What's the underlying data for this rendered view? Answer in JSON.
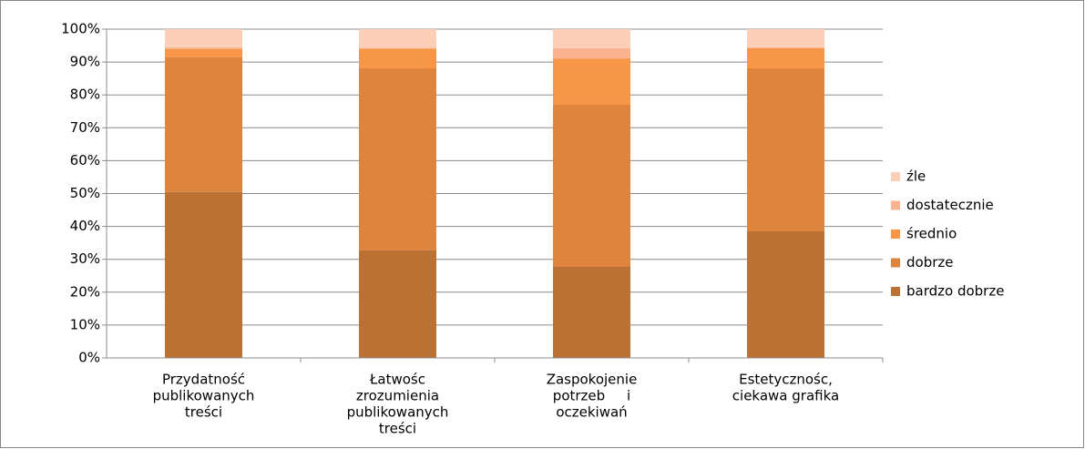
{
  "chart_data": {
    "type": "stacked_bar",
    "categories": [
      [
        "Przydatność",
        "publikowanych",
        "treści"
      ],
      [
        "Łatwośc",
        "zrozumienia",
        "publikowanych",
        "treści"
      ],
      [
        "Zaspokojenie",
        "potrzeb     i",
        "oczekiwań"
      ],
      [
        "Estetycznośc,",
        "ciekawa grafika"
      ]
    ],
    "series": [
      {
        "name": "bardzo dobrze",
        "color": "#bb7133",
        "values": [
          50.5,
          32.7,
          27.7,
          38.5
        ]
      },
      {
        "name": "dobrze",
        "color": "#dd853f",
        "values": [
          41,
          55.4,
          49.3,
          49.6
        ]
      },
      {
        "name": "średnio",
        "color": "#f79646",
        "values": [
          2.5,
          6,
          14.1,
          6.1
        ]
      },
      {
        "name": "dostatecznie",
        "color": "#f9b38e",
        "values": [
          0.5,
          0.2,
          3.1,
          0.3
        ]
      },
      {
        "name": "źle",
        "color": "#fbcfb8",
        "values": [
          5.5,
          5.7,
          5.8,
          5.5
        ]
      }
    ],
    "ylim": [
      0,
      100
    ],
    "yticks": [
      {
        "value": 0,
        "label": "0%"
      },
      {
        "value": 10,
        "label": "10%"
      },
      {
        "value": 20,
        "label": "20%"
      },
      {
        "value": 30,
        "label": "30%"
      },
      {
        "value": 40,
        "label": "40%"
      },
      {
        "value": 50,
        "label": "50%"
      },
      {
        "value": 60,
        "label": "60%"
      },
      {
        "value": 70,
        "label": "70%"
      },
      {
        "value": 80,
        "label": "80%"
      },
      {
        "value": 90,
        "label": "90%"
      },
      {
        "value": 100,
        "label": "100%"
      }
    ],
    "grid": true,
    "legend": "right"
  }
}
